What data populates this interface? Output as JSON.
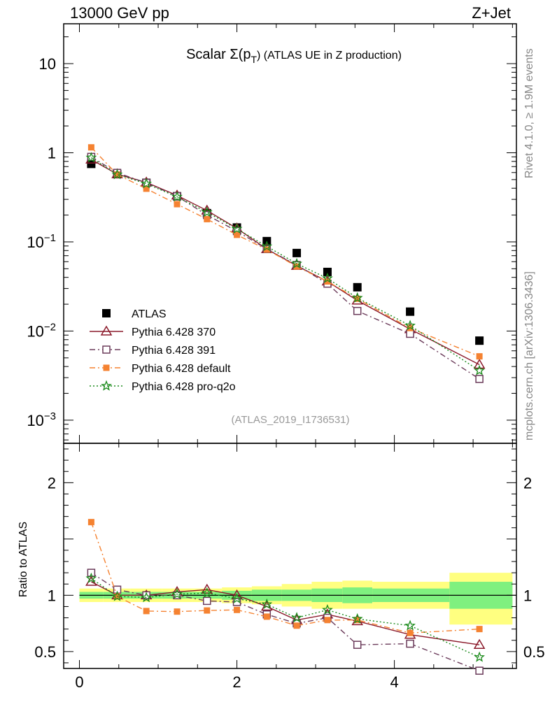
{
  "header": {
    "left": "13000 GeV pp",
    "right": "Z+Jet"
  },
  "side_labels": {
    "rivet": "Rivet 4.1.0, ≥ 1.9M events",
    "mcplots": "mcplots.cern.ch [arXiv:1306.3436]"
  },
  "colors": {
    "atlas": "#000000",
    "p370": "#8b1a2b",
    "p391": "#6b3b5a",
    "pdefault": "#f58231",
    "pq2o": "#1a8a1a",
    "band_inner": "#7ff07f",
    "band_outer": "#ffff80"
  },
  "chart_data": {
    "type": "line",
    "title_prefix": "Scalar ",
    "title_sigma": "Σ(p",
    "title_sub": "T",
    "title_suffix": ") (ATLAS UE in Z production)",
    "analysis_id": "(ATLAS_2019_I1736531)",
    "xlim": [
      -0.2,
      5.55
    ],
    "ylim_main": [
      0.00055,
      28
    ],
    "ylabel_ratio": "Ratio to ATLAS",
    "ylim_ratio": [
      0.35,
      2.35
    ],
    "x_ticks": [
      "0",
      "2",
      "4"
    ],
    "y_ticks_main_decade": [
      "10",
      "1"
    ],
    "y_ticks_main_exp": [
      [
        "10",
        "−1"
      ],
      [
        "10",
        "−2"
      ],
      [
        "10",
        "−3"
      ]
    ],
    "y_ticks_ratio": [
      "2",
      "1",
      "0.5"
    ],
    "x": [
      0.15,
      0.48,
      0.85,
      1.24,
      1.62,
      2.0,
      2.38,
      2.76,
      3.15,
      3.53,
      4.2,
      5.08
    ],
    "series": [
      {
        "name": "ATLAS",
        "key": "atlas",
        "marker": "square_filled",
        "line": "none",
        "values": [
          0.75,
          0.575,
          0.46,
          0.325,
          0.21,
          0.145,
          0.102,
          0.075,
          0.046,
          0.031,
          0.0165,
          0.0078
        ]
      },
      {
        "name": "Pythia 6.428 370",
        "key": "p370",
        "marker": "triangle_open",
        "line": "solid",
        "values": [
          0.84,
          0.575,
          0.465,
          0.332,
          0.225,
          0.142,
          0.083,
          0.054,
          0.036,
          0.022,
          0.0105,
          0.0042
        ],
        "ratio": [
          1.12,
          1.0,
          1.0,
          1.03,
          1.05,
          1.0,
          0.9,
          0.78,
          0.83,
          0.77,
          0.65,
          0.56
        ]
      },
      {
        "name": "Pythia 6.428 391",
        "key": "p391",
        "marker": "square_open",
        "line": "dashdot",
        "values": [
          0.9,
          0.595,
          0.46,
          0.325,
          0.2,
          0.132,
          0.083,
          0.055,
          0.034,
          0.0168,
          0.0093,
          0.0029
        ],
        "ratio": [
          1.2,
          1.05,
          1.0,
          1.0,
          0.95,
          0.94,
          0.83,
          0.75,
          0.8,
          0.56,
          0.57,
          0.33
        ]
      },
      {
        "name": "Pythia 6.428 default",
        "key": "pdefault",
        "marker": "square_filled_small",
        "line": "dashdot",
        "values": [
          1.15,
          0.57,
          0.395,
          0.265,
          0.18,
          0.12,
          0.082,
          0.053,
          0.036,
          0.023,
          0.0108,
          0.0052
        ],
        "ratio": [
          1.65,
          0.99,
          0.86,
          0.855,
          0.865,
          0.87,
          0.81,
          0.73,
          0.78,
          0.78,
          0.665,
          0.7
        ]
      },
      {
        "name": "Pythia 6.428 pro-q2o",
        "key": "pq2o",
        "marker": "star",
        "line": "dotted",
        "values": [
          0.88,
          0.57,
          0.45,
          0.32,
          0.215,
          0.14,
          0.089,
          0.057,
          0.039,
          0.0235,
          0.0115,
          0.0036
        ],
        "ratio": [
          1.15,
          0.99,
          0.98,
          1.01,
          1.02,
          0.97,
          0.92,
          0.8,
          0.87,
          0.79,
          0.73,
          0.45
        ]
      }
    ],
    "band_edges": [
      0.0,
      0.3,
      0.65,
      1.05,
      1.43,
      1.81,
      2.19,
      2.57,
      2.95,
      3.34,
      3.72,
      4.7,
      5.5
    ],
    "band_inner": [
      [
        0.97,
        1.03
      ],
      [
        0.97,
        1.03
      ],
      [
        0.97,
        1.03
      ],
      [
        0.97,
        1.03
      ],
      [
        0.97,
        1.03
      ],
      [
        0.96,
        1.04
      ],
      [
        0.95,
        1.05
      ],
      [
        0.95,
        1.05
      ],
      [
        0.94,
        1.06
      ],
      [
        0.93,
        1.07
      ],
      [
        0.94,
        1.06
      ],
      [
        0.88,
        1.12
      ]
    ],
    "band_outer": [
      [
        0.94,
        1.06
      ],
      [
        0.94,
        1.06
      ],
      [
        0.94,
        1.06
      ],
      [
        0.94,
        1.06
      ],
      [
        0.94,
        1.06
      ],
      [
        0.93,
        1.07
      ],
      [
        0.92,
        1.08
      ],
      [
        0.9,
        1.1
      ],
      [
        0.88,
        1.12
      ],
      [
        0.88,
        1.13
      ],
      [
        0.88,
        1.12
      ],
      [
        0.74,
        1.2
      ]
    ]
  }
}
